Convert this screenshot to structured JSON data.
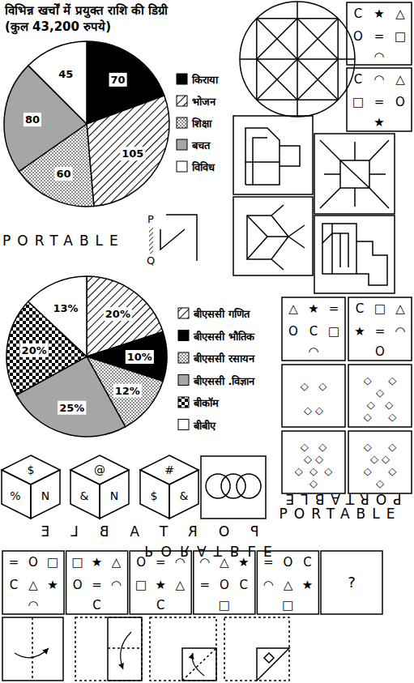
{
  "chart_data": [
    {
      "type": "pie",
      "title": "विभिन्न खर्चों में प्रयुक्त राशि की डिग्री (कुल 43,200 रुपये)",
      "categories": [
        "किराया",
        "भोजन",
        "शिक्षा",
        "बचत",
        "विविध"
      ],
      "values": [
        70,
        105,
        60,
        80,
        45
      ],
      "colors": [
        "#000000",
        "#ffffff",
        "#ffffff",
        "#a6a6a6",
        "#ffffff"
      ],
      "data_labels": true,
      "legend": "right"
    },
    {
      "type": "pie",
      "categories": [
        "बीएससी गणित",
        "बीएससी भौतिक",
        "बीएससी रसायन",
        "बीएससी .विज्ञान",
        "बीकॉम",
        "बीबीए"
      ],
      "values": [
        20,
        10,
        12,
        25,
        20,
        13
      ],
      "value_labels": [
        "20%",
        "10%",
        "12%",
        "25%",
        "20%",
        "13%"
      ],
      "colors": [
        "#ffffff",
        "#000000",
        "#ffffff",
        "#a6a6a6",
        "#ffffff",
        "#ffffff"
      ],
      "data_labels": true,
      "legend": "right"
    }
  ],
  "symbol_boxes_top": [
    {
      "rows": [
        [
          "C",
          "★",
          "△"
        ],
        [
          "O",
          "=",
          "□"
        ],
        [
          "◠"
        ]
      ]
    },
    {
      "rows": [
        [
          "C",
          "◠",
          "△"
        ],
        [
          "□",
          "=",
          "O"
        ],
        [
          "★"
        ]
      ]
    }
  ],
  "mirror_question": {
    "word": "PORTABLE",
    "mirror_labels": [
      "P",
      "Q"
    ]
  },
  "symbol_boxes_middle": [
    {
      "rows": [
        [
          "△",
          "★",
          "="
        ],
        [
          "O",
          "C",
          "□"
        ],
        [
          "◠"
        ]
      ]
    },
    {
      "rows": [
        [
          "C",
          "□",
          "△"
        ],
        [
          "★",
          "=",
          "◠"
        ],
        [
          "O"
        ]
      ]
    }
  ],
  "diamond_boxes": [
    {
      "rows": [
        "◇   ◇",
        "◇ ◇"
      ]
    },
    {
      "rows": [
        "◇     ◇",
        "◇",
        "◇   ◇",
        "◇     ◇"
      ]
    },
    {
      "rows": [
        "◇   ◇",
        "◇ ◇",
        "◇  ◇  ◇",
        "◇"
      ]
    },
    {
      "rows": [
        "◇     ◇",
        "◇ ◇",
        "◇     ◇",
        "◇"
      ]
    }
  ],
  "cubes": [
    {
      "top": "$",
      "left": "%",
      "right": "N"
    },
    {
      "top": "@",
      "left": "&",
      "right": "N"
    },
    {
      "top": "#",
      "left": "$",
      "right": "&"
    }
  ],
  "mirror_options": {
    "right": [
      "PORTABLE",
      "PORTABLE"
    ],
    "left": [
      "PORTABLE",
      "PORATBLE"
    ]
  },
  "series_question": {
    "boxes": [
      {
        "rows": [
          [
            "=",
            "O",
            "□"
          ],
          [
            "C",
            "△",
            "★"
          ],
          [
            "◠"
          ]
        ]
      },
      {
        "rows": [
          [
            "□",
            "★",
            "△"
          ],
          [
            "O",
            "=",
            "◠"
          ],
          [
            "C"
          ]
        ]
      },
      {
        "rows": [
          [
            "O",
            "=",
            "◠"
          ],
          [
            "□",
            "★",
            "△"
          ],
          [
            "C"
          ]
        ]
      },
      {
        "rows": [
          [
            "◠",
            "△",
            "★"
          ],
          [
            "=",
            "O",
            "C"
          ],
          [
            "□"
          ]
        ]
      },
      {
        "rows": [
          [
            "=",
            "O",
            "C"
          ],
          [
            "◠",
            "△",
            "★"
          ],
          [
            "□"
          ]
        ]
      }
    ],
    "answer": "?"
  }
}
